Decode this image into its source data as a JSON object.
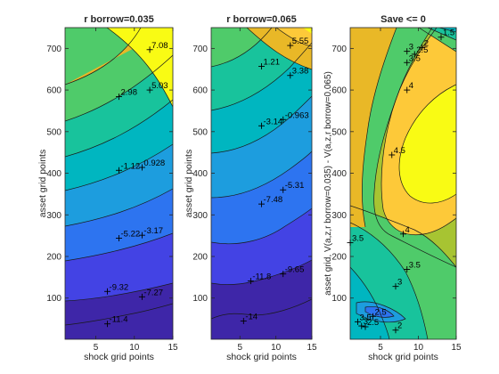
{
  "colors": {
    "levels": [
      "#3e26a8",
      "#4343e4",
      "#2d74f0",
      "#1d9dde",
      "#00b6c0",
      "#18c39c",
      "#4fcb6a",
      "#a7c432",
      "#e9b827",
      "#fdc939",
      "#f9fb14"
    ],
    "axes": "#262626",
    "contour_line": "#1a1a1a"
  },
  "chart_data": [
    {
      "type": "contour",
      "title": "r borrow=0.035",
      "xlabel": "shock grid points",
      "ylabel": "asset grid points",
      "xlim": [
        1,
        15
      ],
      "ylim": [
        1,
        750
      ],
      "xticks": [
        5,
        10,
        15
      ],
      "yticks": [
        100,
        200,
        300,
        400,
        500,
        600,
        700
      ],
      "labels": [
        {
          "text": "7.08",
          "x": 12,
          "y": 697
        },
        {
          "text": "5.03",
          "x": 12,
          "y": 600
        },
        {
          "text": "2.98",
          "x": 8,
          "y": 584
        },
        {
          "text": "0.928",
          "x": 11,
          "y": 414
        },
        {
          "text": "-1.12",
          "x": 8,
          "y": 407
        },
        {
          "text": "-3.17",
          "x": 11,
          "y": 251
        },
        {
          "text": "-5.22",
          "x": 8,
          "y": 244
        },
        {
          "text": "-7.27",
          "x": 11,
          "y": 103
        },
        {
          "text": "-9.32",
          "x": 6.5,
          "y": 116
        },
        {
          "text": "-11.4",
          "x": 6.5,
          "y": 38
        }
      ]
    },
    {
      "type": "contour",
      "title": "r borrow=0.065",
      "xlabel": "shock grid points",
      "ylabel": "asset grid points",
      "xlim": [
        1,
        15
      ],
      "ylim": [
        1,
        750
      ],
      "xticks": [
        5,
        10,
        15
      ],
      "yticks": [
        100,
        200,
        300,
        400,
        500,
        600,
        700
      ],
      "labels": [
        {
          "text": "5.55",
          "x": 12,
          "y": 707
        },
        {
          "text": "1.21",
          "x": 8,
          "y": 657
        },
        {
          "text": "3.38",
          "x": 12,
          "y": 635
        },
        {
          "text": "-0.963",
          "x": 11,
          "y": 529
        },
        {
          "text": "-3.14",
          "x": 8,
          "y": 514
        },
        {
          "text": "-5.31",
          "x": 11,
          "y": 360
        },
        {
          "text": "-7.48",
          "x": 8,
          "y": 326
        },
        {
          "text": "-9.65",
          "x": 11,
          "y": 158
        },
        {
          "text": "-11.8",
          "x": 6.5,
          "y": 141
        },
        {
          "text": "-14",
          "x": 5.5,
          "y": 45
        }
      ]
    },
    {
      "type": "contour",
      "title": "Save <= 0",
      "xlabel": "shock grid points",
      "ylabel": "asset grid, V(a,z,r borrow=0.035) - V(a,z,r borrow=0.065)",
      "xlim": [
        1,
        15
      ],
      "ylim": [
        1,
        750
      ],
      "xticks": [
        5,
        10,
        15
      ],
      "yticks": [
        100,
        200,
        300,
        400,
        500,
        600,
        700
      ],
      "labels": [
        {
          "text": "1.5",
          "x": 13,
          "y": 727
        },
        {
          "text": "2",
          "x": 10.5,
          "y": 702
        },
        {
          "text": "2.5",
          "x": 9.5,
          "y": 686
        },
        {
          "text": "3",
          "x": 8.5,
          "y": 693
        },
        {
          "text": "3.5",
          "x": 8.5,
          "y": 666
        },
        {
          "text": "4",
          "x": 8.5,
          "y": 600
        },
        {
          "text": "4.5",
          "x": 6.5,
          "y": 444
        },
        {
          "text": "4",
          "x": 8,
          "y": 254
        },
        {
          "text": "3.5",
          "x": 1,
          "y": 233
        },
        {
          "text": "3.5",
          "x": 8.5,
          "y": 169
        },
        {
          "text": "3",
          "x": 7,
          "y": 128
        },
        {
          "text": "2.5",
          "x": 4,
          "y": 56
        },
        {
          "text": "3.5",
          "x": 2,
          "y": 43
        },
        {
          "text": "3",
          "x": 2.5,
          "y": 33
        },
        {
          "text": "2.5",
          "x": 3,
          "y": 31
        },
        {
          "text": "2",
          "x": 7,
          "y": 23
        }
      ]
    }
  ]
}
